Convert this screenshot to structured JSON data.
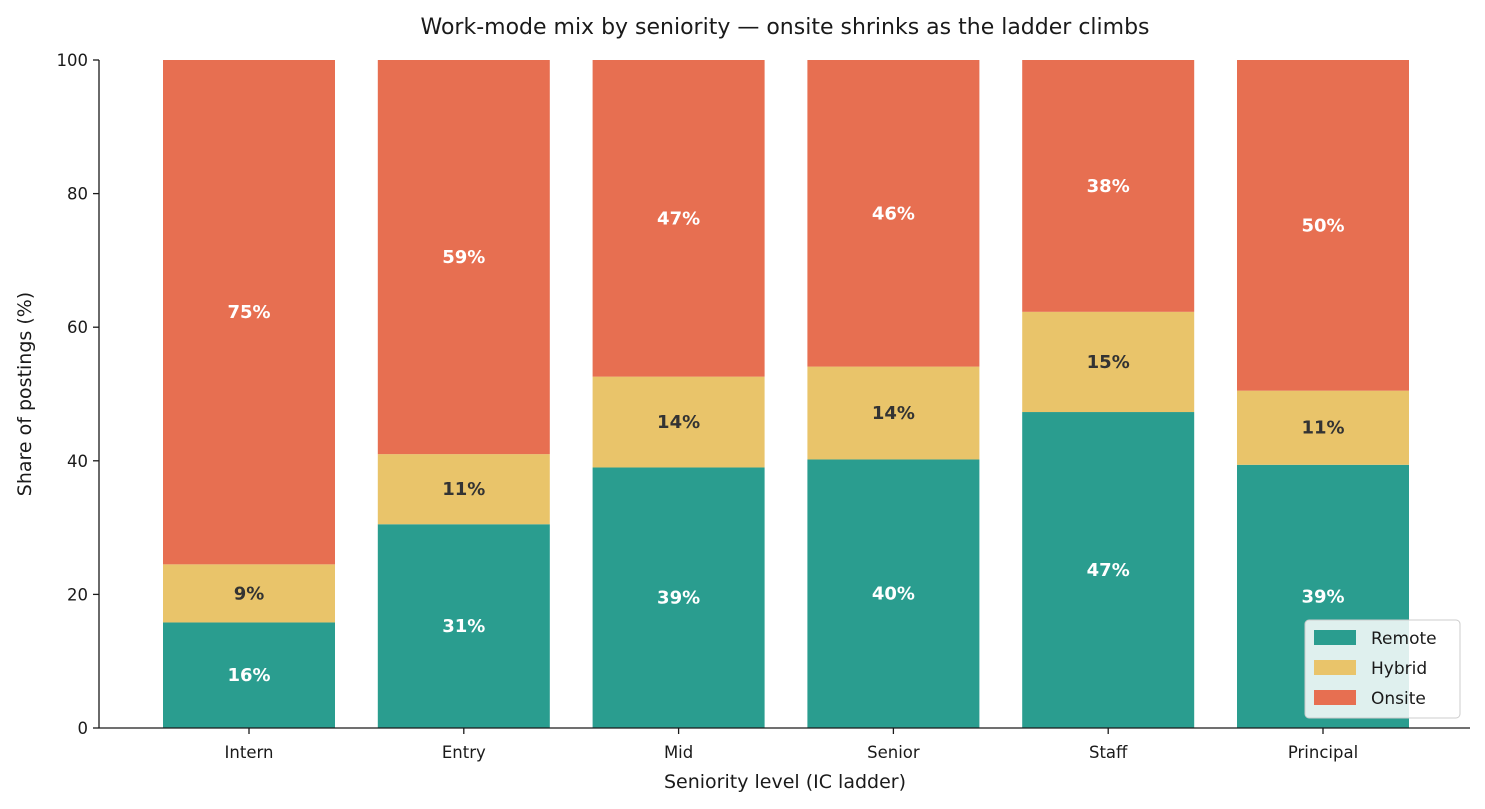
{
  "chart_data": {
    "type": "bar",
    "stacked": true,
    "title": "Work-mode mix by seniority — onsite shrinks as the ladder climbs",
    "xlabel": "Seniority level (IC ladder)",
    "ylabel": "Share of postings (%)",
    "ylim": [
      0,
      100
    ],
    "yticks": [
      0,
      20,
      40,
      60,
      80,
      100
    ],
    "grid": false,
    "legend_position": "bottom-right",
    "categories": [
      "Intern",
      "Entry",
      "Mid",
      "Senior",
      "Staff",
      "Principal"
    ],
    "series": [
      {
        "name": "Remote",
        "color": "#2a9d8f",
        "label_color": "#ffffff",
        "values": [
          15.8,
          30.5,
          39.0,
          40.2,
          47.3,
          39.4
        ],
        "labels": [
          "16%",
          "31%",
          "39%",
          "40%",
          "47%",
          "39%"
        ]
      },
      {
        "name": "Hybrid",
        "color": "#e9c46a",
        "label_color": "#333333",
        "values": [
          8.7,
          10.5,
          13.6,
          13.9,
          15.0,
          11.1
        ],
        "labels": [
          "9%",
          "11%",
          "14%",
          "14%",
          "15%",
          "11%"
        ]
      },
      {
        "name": "Onsite",
        "color": "#e76f51",
        "label_color": "#ffffff",
        "values": [
          75.5,
          59.0,
          47.4,
          45.9,
          37.7,
          49.5
        ],
        "labels": [
          "75%",
          "59%",
          "47%",
          "46%",
          "38%",
          "50%"
        ]
      }
    ]
  }
}
